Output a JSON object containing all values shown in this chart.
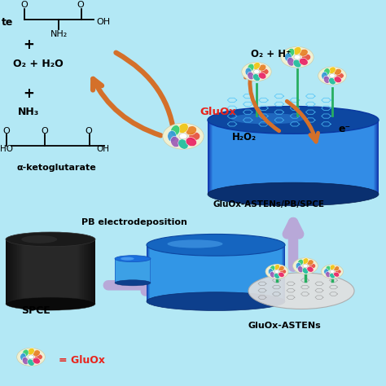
{
  "bg_color": "#b3e8f5",
  "arrow_orange": "#d4702a",
  "arrow_purple": "#b8a8d8",
  "text_color": "black",
  "red_text": "#e8241c",
  "enzyme_colors": [
    "#e74c3c",
    "#e67e22",
    "#f1c40f",
    "#2ecc71",
    "#3498db",
    "#9b59b6",
    "#1abc9c",
    "#e91e63"
  ],
  "labels": {
    "gluox": "GluOx",
    "o2h2o": "O₂ + H₂O",
    "o2hp": "O₂ + H⁺",
    "h2o2": "H₂O₂",
    "eminus": "e⁻",
    "nh3": "NH₃",
    "akg": "α-ketoglutarate",
    "pb_dep": "PB electrodeposition",
    "spce": "SPCE",
    "gluox_astens_pb": "GluOx-ASTENs/PB/SPCE",
    "gluox_astens": "GluOx-ASTENs",
    "legend": "= GluOx"
  }
}
